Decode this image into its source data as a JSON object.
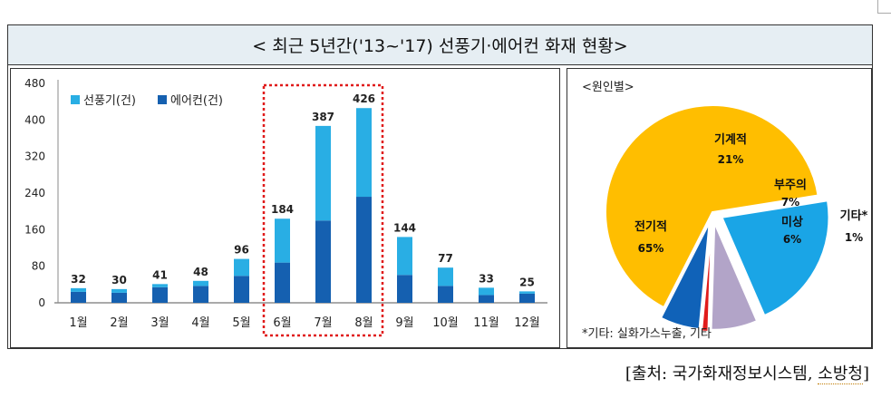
{
  "header": {
    "title": "< 최근  5년간('13~'17)  선풍기·에어컨  화재  현황>"
  },
  "colors": {
    "fan": "#29aee4",
    "aircon": "#1560b0",
    "highlight": "#e01b1b",
    "pie_electric": "#ffbe00",
    "pie_mechanical": "#1aa5e6",
    "pie_carelessness": "#b2a4c8",
    "pie_unknown": "#1062b8",
    "pie_other": "#e01b1b"
  },
  "chart_data": [
    {
      "type": "bar",
      "stacked": true,
      "categories": [
        "1월",
        "2월",
        "3월",
        "4월",
        "5월",
        "6월",
        "7월",
        "8월",
        "9월",
        "10월",
        "11월",
        "12월"
      ],
      "series": [
        {
          "name": "에어컨(건)",
          "values": [
            24,
            22,
            34,
            37,
            59,
            88,
            180,
            232,
            61,
            37,
            17,
            20
          ]
        },
        {
          "name": "선풍기(건)",
          "values": [
            8,
            8,
            7,
            11,
            37,
            96,
            207,
            194,
            83,
            40,
            16,
            5
          ]
        }
      ],
      "totals": [
        32,
        30,
        41,
        48,
        96,
        184,
        387,
        426,
        144,
        77,
        33,
        25
      ],
      "legend": [
        "선풍기(건)",
        "에어컨(건)"
      ],
      "legend_position": "top-left",
      "ylim": [
        0,
        480
      ],
      "yticks": [
        0,
        80,
        160,
        240,
        320,
        400,
        480
      ],
      "highlight_categories": [
        "6월",
        "7월",
        "8월"
      ]
    },
    {
      "type": "pie",
      "title": "<원인별>",
      "slices": [
        {
          "label": "기계적",
          "value": 21,
          "pct": "21%"
        },
        {
          "label": "부주의",
          "value": 7,
          "pct": "7%"
        },
        {
          "label": "기타*",
          "value": 1,
          "pct": "1%"
        },
        {
          "label": "미상",
          "value": 6,
          "pct": "6%"
        },
        {
          "label": "전기적",
          "value": 65,
          "pct": "65%"
        }
      ],
      "footnote": "*기타: 실화가스누출, 기타"
    }
  ],
  "source": {
    "prefix": "[출처: 국가화재정보시스템, ",
    "agency": "소방청",
    "suffix": "]"
  }
}
